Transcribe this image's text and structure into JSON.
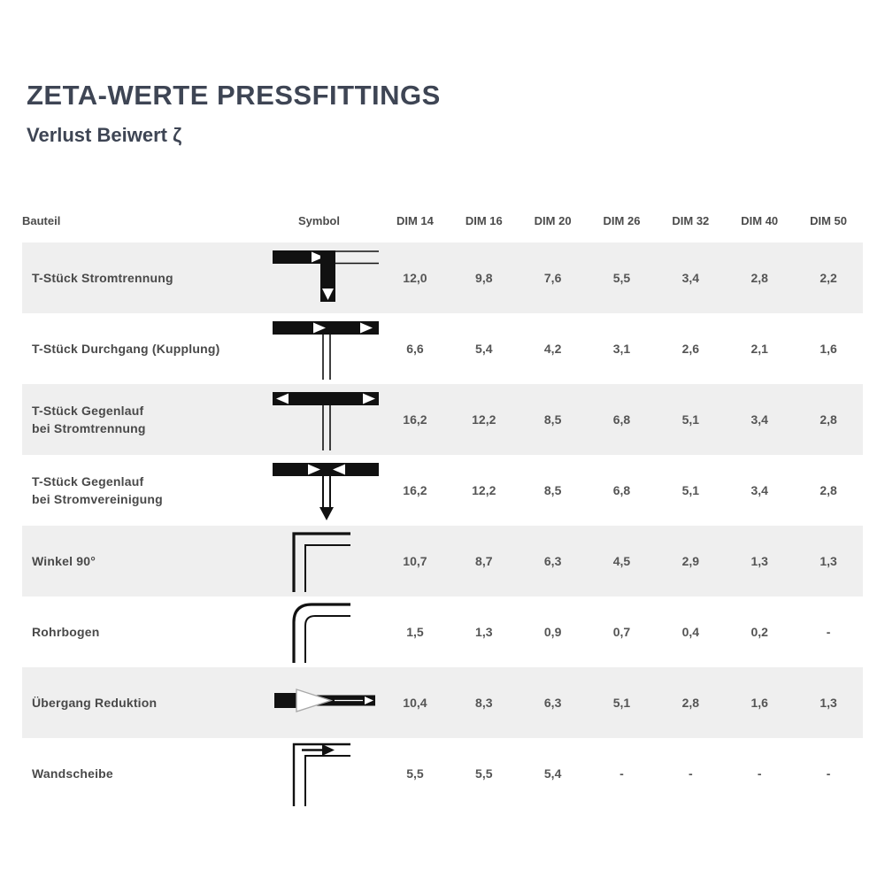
{
  "page": {
    "title": "ZETA-WERTE PRESSFITTINGS",
    "subtitle": "Verlust Beiwert ζ"
  },
  "colors": {
    "title_text": "#3e4554",
    "header_text": "#4b4b4b",
    "label_text": "#494949",
    "value_text": "#555555",
    "row_stripe": "#efefef",
    "symbol_ink": "#111111"
  },
  "table": {
    "columns": [
      "Bauteil",
      "Symbol",
      "DIM 14",
      "DIM 16",
      "DIM 20",
      "DIM 26",
      "DIM 32",
      "DIM 40",
      "DIM 50"
    ],
    "rows": [
      {
        "label": "T-Stück Stromtrennung",
        "symbol": "tee-flow-split-icon",
        "values": [
          "12,0",
          "9,8",
          "7,6",
          "5,5",
          "3,4",
          "2,8",
          "2,2"
        ]
      },
      {
        "label": "T-Stück Durchgang (Kupplung)",
        "symbol": "tee-straight-through-icon",
        "values": [
          "6,6",
          "5,4",
          "4,2",
          "3,1",
          "2,6",
          "2,1",
          "1,6"
        ]
      },
      {
        "label": "T-Stück Gegenlauf\nbei Stromtrennung",
        "symbol": "tee-counterflow-split-icon",
        "values": [
          "16,2",
          "12,2",
          "8,5",
          "6,8",
          "5,1",
          "3,4",
          "2,8"
        ]
      },
      {
        "label": "T-Stück Gegenlauf\nbei Stromvereinigung",
        "symbol": "tee-counterflow-merge-icon",
        "values": [
          "16,2",
          "12,2",
          "8,5",
          "6,8",
          "5,1",
          "3,4",
          "2,8"
        ]
      },
      {
        "label": "Winkel 90°",
        "symbol": "elbow-90-icon",
        "values": [
          "10,7",
          "8,7",
          "6,3",
          "4,5",
          "2,9",
          "1,3",
          "1,3"
        ]
      },
      {
        "label": "Rohrbogen",
        "symbol": "pipe-bend-icon",
        "values": [
          "1,5",
          "1,3",
          "0,9",
          "0,7",
          "0,4",
          "0,2",
          "-"
        ]
      },
      {
        "label": "Übergang Reduktion",
        "symbol": "reducer-icon",
        "values": [
          "10,4",
          "8,3",
          "6,3",
          "5,1",
          "2,8",
          "1,6",
          "1,3"
        ]
      },
      {
        "label": "Wandscheibe",
        "symbol": "wall-plate-elbow-icon",
        "values": [
          "5,5",
          "5,5",
          "5,4",
          "-",
          "-",
          "-",
          "-"
        ]
      }
    ]
  }
}
